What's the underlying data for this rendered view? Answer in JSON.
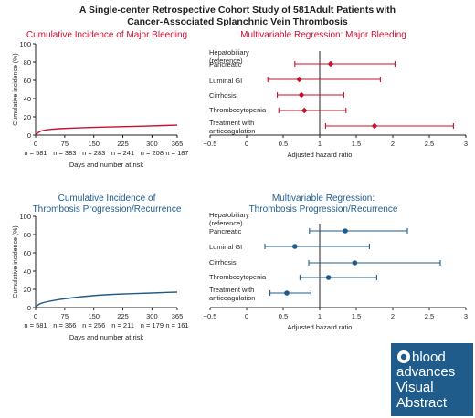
{
  "title_lines": [
    "A Single-center Retrospective Cohort Study of 581Adult Patients with",
    "Cancer-Associated Splanchnic Vein Thrombosis"
  ],
  "colors": {
    "bleeding": "#c8102e",
    "thrombosis": "#1f5c8b",
    "text": "#231f20",
    "logo_bg": "#1f5c8b"
  },
  "logo": {
    "line1": "blood",
    "line2": "advances",
    "line3": "Visual",
    "line4": "Abstract"
  },
  "chart_data": [
    {
      "type": "line",
      "id": "ci_bleed",
      "title": "Cumulative Incidence of Major Bleeding",
      "ylabel": "Cumulative incidence (%)",
      "xlabel": "Days and number at risk",
      "ylim": [
        0,
        100
      ],
      "xlim": [
        0,
        365
      ],
      "yticks": [
        "0",
        "20",
        "40",
        "60",
        "80",
        "100"
      ],
      "xticks": [
        "0",
        "75",
        "150",
        "225",
        "300",
        "365"
      ],
      "at_risk": [
        "n = 581",
        "n = 383",
        "n = 283",
        "n = 241",
        "n = 208",
        "n = 187"
      ],
      "x": [
        0,
        3,
        8,
        15,
        25,
        40,
        60,
        90,
        130,
        180,
        230,
        280,
        330,
        365
      ],
      "values": [
        0,
        1.5,
        3.2,
        4.6,
        5.6,
        6.3,
        7.0,
        7.6,
        8.2,
        8.8,
        9.3,
        9.8,
        10.5,
        10.9
      ],
      "color": "#c8102e"
    },
    {
      "type": "scatter",
      "id": "mv_bleed",
      "title": "Multivariable Regression: Major Bleeding",
      "xlabel": "Adjusted hazard ratio",
      "xlim": [
        -0.5,
        3.0
      ],
      "xticks": [
        "−0.5",
        "0",
        "0.5",
        "1",
        "1.5",
        "2",
        "2.5",
        "3"
      ],
      "reference": 1,
      "rows": [
        {
          "label": "Hepatobiliary\n(reference)",
          "hr": null,
          "lo": null,
          "hi": null
        },
        {
          "label": "Pancreatic",
          "hr": 1.15,
          "lo": 0.66,
          "hi": 2.03
        },
        {
          "label": "Luminal GI",
          "hr": 0.72,
          "lo": 0.29,
          "hi": 1.83
        },
        {
          "label": "Cirrhosis",
          "hr": 0.75,
          "lo": 0.42,
          "hi": 1.33
        },
        {
          "label": "Thrombocytopenia",
          "hr": 0.79,
          "lo": 0.44,
          "hi": 1.36
        },
        {
          "label": "Treatment with\nanticoagulation",
          "hr": 1.75,
          "lo": 1.08,
          "hi": 2.83
        }
      ],
      "color": "#c8102e"
    },
    {
      "type": "line",
      "id": "ci_thromb",
      "title": "Cumulative Incidence of\nThrombosis Progression/Recurrence",
      "ylabel": "Cumulative incidence (%)",
      "xlabel": "Days and number at risk",
      "ylim": [
        0,
        100
      ],
      "xlim": [
        0,
        365
      ],
      "yticks": [
        "0",
        "20",
        "40",
        "60",
        "80",
        "100"
      ],
      "xticks": [
        "0",
        "75",
        "150",
        "225",
        "300",
        "365"
      ],
      "at_risk": [
        "n = 581",
        "n = 366",
        "n = 256",
        "n = 211",
        "n = 179",
        "n = 161"
      ],
      "x": [
        0,
        3,
        8,
        15,
        25,
        40,
        60,
        90,
        120,
        160,
        200,
        250,
        300,
        340,
        365
      ],
      "values": [
        0,
        2.0,
        3.5,
        4.8,
        6.0,
        7.3,
        8.8,
        10.5,
        12.0,
        13.5,
        14.5,
        15.3,
        16.0,
        16.7,
        17.0
      ],
      "color": "#1f5c8b"
    },
    {
      "type": "scatter",
      "id": "mv_thromb",
      "title": "Multivariable Regression:\nThrombosis Progression/Recurrence",
      "xlabel": "Adjusted hazard ratio",
      "xlim": [
        -0.5,
        3.0
      ],
      "xticks": [
        "−0.5",
        "0",
        "0.5",
        "1",
        "1.5",
        "2",
        "2.5",
        "3"
      ],
      "reference": 1,
      "rows": [
        {
          "label": "Hepatobiliary\n(reference)",
          "hr": null,
          "lo": null,
          "hi": null
        },
        {
          "label": "Pancreatic",
          "hr": 1.35,
          "lo": 0.86,
          "hi": 2.2
        },
        {
          "label": "Luminal GI",
          "hr": 0.66,
          "lo": 0.25,
          "hi": 1.68
        },
        {
          "label": "Cirrhosis",
          "hr": 1.48,
          "lo": 0.85,
          "hi": 2.65
        },
        {
          "label": "Thrombocytopenia",
          "hr": 1.12,
          "lo": 0.73,
          "hi": 1.78
        },
        {
          "label": "Treatment with\nanticoagulation",
          "hr": 0.55,
          "lo": 0.32,
          "hi": 0.88
        }
      ],
      "color": "#1f5c8b"
    }
  ]
}
